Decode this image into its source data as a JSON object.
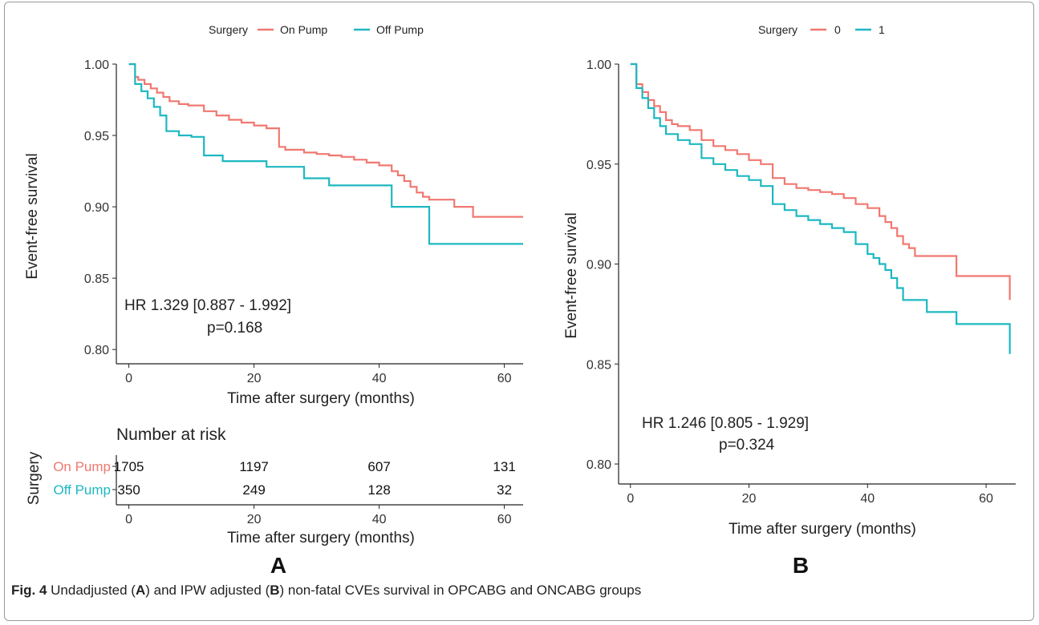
{
  "colors": {
    "on_pump": "#F07870",
    "off_pump": "#1DB8C1",
    "axis": "#222222"
  },
  "figure": {
    "caption": {
      "fig_label": "Fig. 4",
      "t1": " Undadjusted (",
      "a": "A",
      "t2": ") and IPW adjusted (",
      "b": "B",
      "t3": ") non-fatal CVEs survival in OPCABG and ONCABG groups"
    },
    "panel_labels": [
      "A",
      "B"
    ]
  },
  "chart_data": [
    {
      "panel": "A",
      "type": "line",
      "step": true,
      "legend": {
        "title": "Surgery",
        "entries": [
          "On Pump",
          "Off Pump"
        ],
        "position": "top"
      },
      "xlabel": "Time after surgery (months)",
      "ylabel": "Event-free survival",
      "xlim": [
        -2,
        63
      ],
      "ylim": [
        0.79,
        1.0
      ],
      "xticks": [
        0,
        20,
        40,
        60
      ],
      "yticks": [
        0.8,
        0.85,
        0.9,
        0.95,
        1.0
      ],
      "ytick_labels": [
        "0.80",
        "0.85",
        "0.90",
        "0.95",
        "1.00"
      ],
      "annotation": {
        "line1": "HR 1.329  [0.887 - 1.992]",
        "line2": "p=0.168"
      },
      "series": [
        {
          "name": "On Pump",
          "color": "#F07870",
          "x": [
            0,
            1,
            1.5,
            2.5,
            3.5,
            4.5,
            5.5,
            6.5,
            8,
            9.5,
            12,
            14,
            16,
            18,
            20,
            22,
            24,
            25,
            28,
            30,
            32,
            34,
            36,
            38,
            40,
            42,
            43,
            44,
            45,
            46,
            47,
            48,
            50,
            52,
            54,
            55,
            63
          ],
          "y": [
            1.0,
            0.991,
            0.989,
            0.986,
            0.983,
            0.98,
            0.977,
            0.974,
            0.972,
            0.971,
            0.967,
            0.964,
            0.961,
            0.959,
            0.957,
            0.955,
            0.942,
            0.94,
            0.938,
            0.937,
            0.936,
            0.935,
            0.933,
            0.931,
            0.929,
            0.925,
            0.922,
            0.918,
            0.914,
            0.91,
            0.907,
            0.905,
            0.905,
            0.9,
            0.9,
            0.893,
            0.893
          ]
        },
        {
          "name": "Off Pump",
          "color": "#1DB8C1",
          "x": [
            0,
            1,
            2,
            3,
            4,
            5,
            6,
            8,
            10,
            12,
            15,
            18,
            22,
            28,
            32,
            38,
            42,
            44,
            48,
            63
          ],
          "y": [
            1.0,
            0.986,
            0.981,
            0.976,
            0.97,
            0.964,
            0.953,
            0.95,
            0.949,
            0.936,
            0.932,
            0.932,
            0.928,
            0.92,
            0.915,
            0.915,
            0.9,
            0.9,
            0.874,
            0.874
          ]
        }
      ],
      "risk_table": {
        "title": "Number at risk",
        "ylabel": "Surgery",
        "xlabel": "Time after surgery (months)",
        "xticks": [
          0,
          20,
          40,
          60
        ],
        "rows": [
          {
            "label": "On Pump",
            "values": [
              "1705",
              "1197",
              "607",
              "131"
            ]
          },
          {
            "label": "Off Pump",
            "values": [
              "350",
              "249",
              "128",
              "32"
            ]
          }
        ]
      }
    },
    {
      "panel": "B",
      "type": "line",
      "step": true,
      "legend": {
        "title": "Surgery",
        "entries": [
          "0",
          "1"
        ],
        "position": "top"
      },
      "xlabel": "Time after surgery (months)",
      "ylabel": "Event-free survival",
      "xlim": [
        -2,
        65
      ],
      "ylim": [
        0.79,
        1.0
      ],
      "xticks": [
        0,
        20,
        40,
        60
      ],
      "yticks": [
        0.8,
        0.85,
        0.9,
        0.95,
        1.0
      ],
      "ytick_labels": [
        "0.80",
        "0.85",
        "0.90",
        "0.95",
        "1.00"
      ],
      "annotation": {
        "line1": "HR 1.246 [0.805 - 1.929]",
        "line2": "p=0.324"
      },
      "series": [
        {
          "name": "0",
          "color": "#F07870",
          "x": [
            0,
            1,
            2,
            3,
            4,
            5,
            6,
            7,
            8,
            10,
            12,
            14,
            16,
            18,
            20,
            22,
            24,
            26,
            28,
            30,
            32,
            34,
            36,
            38,
            40,
            42,
            43,
            44,
            45,
            46,
            47,
            48,
            50,
            52,
            54,
            55,
            64
          ],
          "y": [
            1.0,
            0.99,
            0.986,
            0.982,
            0.979,
            0.976,
            0.972,
            0.97,
            0.969,
            0.967,
            0.962,
            0.959,
            0.957,
            0.955,
            0.952,
            0.95,
            0.943,
            0.94,
            0.938,
            0.937,
            0.936,
            0.935,
            0.933,
            0.93,
            0.928,
            0.924,
            0.921,
            0.918,
            0.914,
            0.91,
            0.908,
            0.904,
            0.904,
            0.904,
            0.904,
            0.894,
            0.882
          ]
        },
        {
          "name": "1",
          "color": "#1DB8C1",
          "x": [
            0,
            1,
            2,
            3,
            4,
            5,
            6,
            8,
            10,
            12,
            14,
            16,
            18,
            20,
            22,
            24,
            26,
            28,
            30,
            32,
            34,
            36,
            38,
            40,
            41,
            42,
            43,
            44,
            45,
            46,
            47,
            48,
            50,
            52,
            54,
            55,
            58,
            64
          ],
          "y": [
            1.0,
            0.988,
            0.983,
            0.978,
            0.973,
            0.969,
            0.965,
            0.962,
            0.96,
            0.953,
            0.95,
            0.947,
            0.944,
            0.942,
            0.939,
            0.93,
            0.927,
            0.924,
            0.922,
            0.92,
            0.918,
            0.916,
            0.91,
            0.905,
            0.903,
            0.9,
            0.897,
            0.893,
            0.888,
            0.882,
            0.882,
            0.882,
            0.876,
            0.876,
            0.876,
            0.87,
            0.87,
            0.855
          ]
        }
      ]
    }
  ]
}
